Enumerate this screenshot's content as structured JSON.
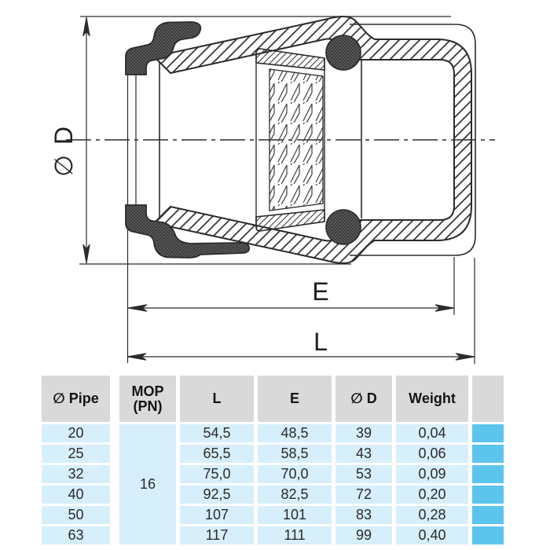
{
  "drawing": {
    "labels": {
      "diameter": "∅ D",
      "inner_length": "E",
      "total_length": "L"
    },
    "colors": {
      "line": "#2b2b2b"
    }
  },
  "table": {
    "headers": {
      "pipe": "∅ Pipe",
      "mop_line1": "MOP",
      "mop_line2": "(PN)",
      "l": "L",
      "e": "E",
      "d": "∅ D",
      "weight": "Weight"
    },
    "mop_value": "16",
    "rows": [
      {
        "pipe": "20",
        "l": "54,5",
        "e": "48,5",
        "d": "39",
        "weight": "0,04"
      },
      {
        "pipe": "25",
        "l": "65,5",
        "e": "58,5",
        "d": "43",
        "weight": "0,06"
      },
      {
        "pipe": "32",
        "l": "75,0",
        "e": "70,0",
        "d": "53",
        "weight": "0,09"
      },
      {
        "pipe": "40",
        "l": "92,5",
        "e": "82,5",
        "d": "72",
        "weight": "0,20"
      },
      {
        "pipe": "50",
        "l": "107",
        "e": "101",
        "d": "83",
        "weight": "0,28"
      },
      {
        "pipe": "63",
        "l": "117",
        "e": "111",
        "d": "99",
        "weight": "0,40"
      }
    ],
    "colors": {
      "header_bg": "#d9d9d9",
      "row_bg": "#d7eefb",
      "accent": "#5cc5ee",
      "text": "#141414"
    }
  }
}
